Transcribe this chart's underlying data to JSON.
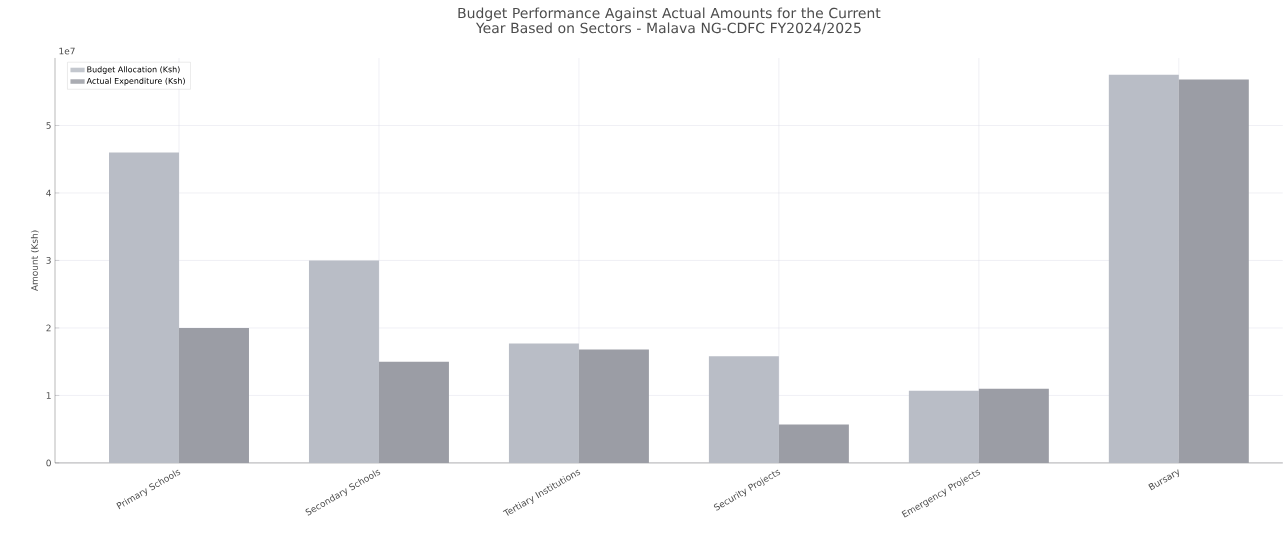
{
  "chart_data": {
    "type": "bar",
    "title": "Budget Performance Against Actual Amounts for the Current Year Based on Sectors - Malava NG-CDFC FY2024/2025",
    "ylabel": "Amount (Ksh)",
    "categories": [
      "Primary Schools",
      "Secondary Schools",
      "Tertiary Institutions",
      "Security Projects",
      "Emergency Projects",
      "Bursary"
    ],
    "series": [
      {
        "name": "Budget Allocation (Ksh)",
        "color": "#b9bdc6",
        "values": [
          4.6,
          3.0,
          1.77,
          1.58,
          1.07,
          5.75
        ]
      },
      {
        "name": "Actual Expenditure (Ksh)",
        "color": "#9b9da5",
        "values": [
          2.0,
          1.5,
          1.68,
          0.57,
          1.1,
          5.68
        ]
      }
    ],
    "ylim": [
      0,
      6
    ],
    "yticks": [
      0,
      1,
      2,
      3,
      4,
      5
    ],
    "annotations": [
      "1e7"
    ],
    "grid": true,
    "legend": "top left"
  }
}
